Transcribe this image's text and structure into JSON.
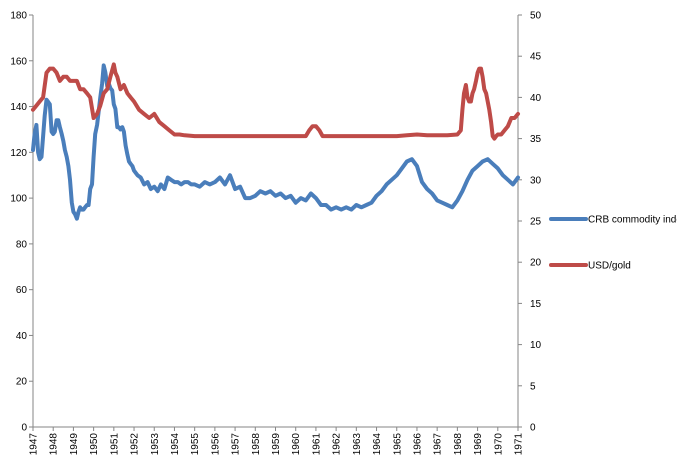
{
  "chart_data": {
    "type": "line",
    "title": "",
    "xlabel": "",
    "ylabel": "",
    "ylim": [
      0,
      180
    ],
    "y_ticks": [
      0,
      20,
      40,
      60,
      80,
      100,
      120,
      140,
      160,
      180
    ],
    "y2lim": [
      0,
      50
    ],
    "y2_ticks": [
      0,
      5,
      10,
      15,
      20,
      25,
      30,
      35,
      40,
      45,
      50
    ],
    "xlim": [
      1947.0,
      1971.0
    ],
    "x_tick_labels": [
      "1947",
      "1948",
      "1949",
      "1950",
      "1951",
      "1952",
      "1953",
      "1954",
      "1955",
      "1956",
      "1957",
      "1958",
      "1959",
      "1960",
      "1961",
      "1962",
      "1963",
      "1964",
      "1965",
      "1966",
      "1967",
      "1968",
      "1969",
      "1970",
      "1971"
    ],
    "grid": false,
    "legend_position": "right",
    "series": [
      {
        "name": "CRB commodity index",
        "axis": "left",
        "color": "#4a7ebb",
        "x": [
          1947.0,
          1947.08,
          1947.17,
          1947.25,
          1947.33,
          1947.42,
          1947.5,
          1947.58,
          1947.67,
          1947.75,
          1947.83,
          1947.92,
          1948.0,
          1948.08,
          1948.17,
          1948.25,
          1948.33,
          1948.42,
          1948.5,
          1948.58,
          1948.67,
          1948.75,
          1948.83,
          1948.92,
          1949.0,
          1949.08,
          1949.17,
          1949.25,
          1949.33,
          1949.42,
          1949.5,
          1949.58,
          1949.67,
          1949.75,
          1949.83,
          1949.92,
          1950.0,
          1950.08,
          1950.17,
          1950.25,
          1950.33,
          1950.42,
          1950.5,
          1950.58,
          1950.67,
          1950.75,
          1950.83,
          1950.92,
          1951.0,
          1951.08,
          1951.17,
          1951.25,
          1951.33,
          1951.42,
          1951.5,
          1951.58,
          1951.67,
          1951.75,
          1951.83,
          1951.92,
          1952.0,
          1952.17,
          1952.33,
          1952.5,
          1952.67,
          1952.83,
          1953.0,
          1953.17,
          1953.33,
          1953.5,
          1953.67,
          1953.83,
          1954.0,
          1954.17,
          1954.33,
          1954.5,
          1954.67,
          1954.83,
          1955.0,
          1955.25,
          1955.5,
          1955.75,
          1956.0,
          1956.25,
          1956.5,
          1956.75,
          1957.0,
          1957.25,
          1957.5,
          1957.75,
          1958.0,
          1958.25,
          1958.5,
          1958.75,
          1959.0,
          1959.25,
          1959.5,
          1959.75,
          1960.0,
          1960.25,
          1960.5,
          1960.75,
          1961.0,
          1961.25,
          1961.5,
          1961.75,
          1962.0,
          1962.25,
          1962.5,
          1962.75,
          1963.0,
          1963.25,
          1963.5,
          1963.75,
          1964.0,
          1964.25,
          1964.5,
          1964.75,
          1965.0,
          1965.25,
          1965.5,
          1965.75,
          1966.0,
          1966.25,
          1966.5,
          1966.75,
          1967.0,
          1967.25,
          1967.5,
          1967.75,
          1968.0,
          1968.25,
          1968.5,
          1968.75,
          1969.0,
          1969.25,
          1969.5,
          1969.75,
          1970.0,
          1970.25,
          1970.5,
          1970.75,
          1971.0
        ],
        "values": [
          121,
          128,
          132,
          120,
          117,
          118,
          127,
          136,
          143,
          142,
          141,
          129,
          128,
          129,
          134,
          134,
          131,
          128,
          125,
          121,
          118,
          114,
          108,
          98,
          94,
          93,
          91,
          94,
          96,
          95,
          95,
          96,
          97,
          97,
          104,
          106,
          118,
          128,
          132,
          138,
          144,
          150,
          158,
          155,
          149,
          150,
          148,
          147,
          141,
          139,
          131,
          131,
          130,
          131,
          129,
          123,
          119,
          116,
          115,
          114,
          112,
          110,
          109,
          106,
          107,
          104,
          105,
          103,
          106,
          104,
          109,
          108,
          107,
          107,
          106,
          107,
          107,
          106,
          106,
          105,
          107,
          106,
          107,
          109,
          106,
          110,
          104,
          105,
          100,
          100,
          101,
          103,
          102,
          103,
          101,
          102,
          100,
          101,
          98,
          100,
          99,
          102,
          100,
          97,
          97,
          95,
          96,
          95,
          96,
          95,
          97,
          96,
          97,
          98,
          101,
          103,
          106,
          108,
          110,
          113,
          116,
          117,
          114,
          107,
          104,
          102,
          99,
          98,
          97,
          96,
          99,
          103,
          108,
          112,
          114,
          116,
          117,
          115,
          113,
          110,
          108,
          106,
          109
        ]
      },
      {
        "name": "USD/gold",
        "axis": "right",
        "color": "#be4b48",
        "x": [
          1947.0,
          1947.17,
          1947.33,
          1947.5,
          1947.67,
          1947.83,
          1948.0,
          1948.17,
          1948.33,
          1948.5,
          1948.67,
          1948.83,
          1949.0,
          1949.17,
          1949.33,
          1949.5,
          1949.67,
          1949.83,
          1950.0,
          1950.17,
          1950.33,
          1950.5,
          1950.67,
          1950.83,
          1951.0,
          1951.08,
          1951.17,
          1951.33,
          1951.5,
          1951.67,
          1951.83,
          1952.0,
          1952.25,
          1952.5,
          1952.75,
          1953.0,
          1953.25,
          1953.5,
          1953.75,
          1954.0,
          1954.25,
          1954.5,
          1955.0,
          1956.0,
          1957.0,
          1958.0,
          1959.0,
          1960.0,
          1960.5,
          1960.67,
          1960.83,
          1961.0,
          1961.17,
          1961.33,
          1962.0,
          1963.0,
          1964.0,
          1965.0,
          1965.5,
          1966.0,
          1966.5,
          1967.0,
          1967.5,
          1968.0,
          1968.17,
          1968.25,
          1968.33,
          1968.42,
          1968.5,
          1968.58,
          1968.67,
          1968.75,
          1968.83,
          1968.92,
          1969.0,
          1969.08,
          1969.17,
          1969.25,
          1969.33,
          1969.42,
          1969.5,
          1969.58,
          1969.67,
          1969.75,
          1969.83,
          1969.92,
          1970.0,
          1970.17,
          1970.33,
          1970.5,
          1970.67,
          1970.83,
          1971.0
        ],
        "values": [
          38.5,
          39.0,
          39.5,
          40.0,
          43.0,
          43.5,
          43.5,
          43.0,
          42.0,
          42.5,
          42.5,
          42.0,
          42.0,
          42.0,
          41.0,
          41.0,
          40.5,
          40.0,
          37.5,
          38.0,
          39.0,
          40.5,
          41.0,
          42.5,
          44.0,
          43.0,
          42.5,
          41.0,
          41.5,
          40.5,
          40.0,
          39.5,
          38.5,
          38.0,
          37.5,
          38.0,
          37.0,
          36.5,
          36.0,
          35.5,
          35.5,
          35.4,
          35.3,
          35.3,
          35.3,
          35.3,
          35.3,
          35.3,
          35.3,
          36.0,
          36.5,
          36.5,
          36.0,
          35.3,
          35.3,
          35.3,
          35.3,
          35.3,
          35.4,
          35.5,
          35.4,
          35.4,
          35.4,
          35.5,
          36.0,
          38.5,
          40.5,
          41.5,
          40.0,
          39.5,
          39.5,
          40.5,
          41.0,
          42.0,
          43.0,
          43.5,
          43.5,
          42.5,
          41.0,
          40.5,
          39.5,
          38.5,
          37.0,
          35.3,
          35.0,
          35.3,
          35.5,
          35.5,
          36.0,
          36.5,
          37.5,
          37.5,
          38.0
        ]
      }
    ]
  }
}
